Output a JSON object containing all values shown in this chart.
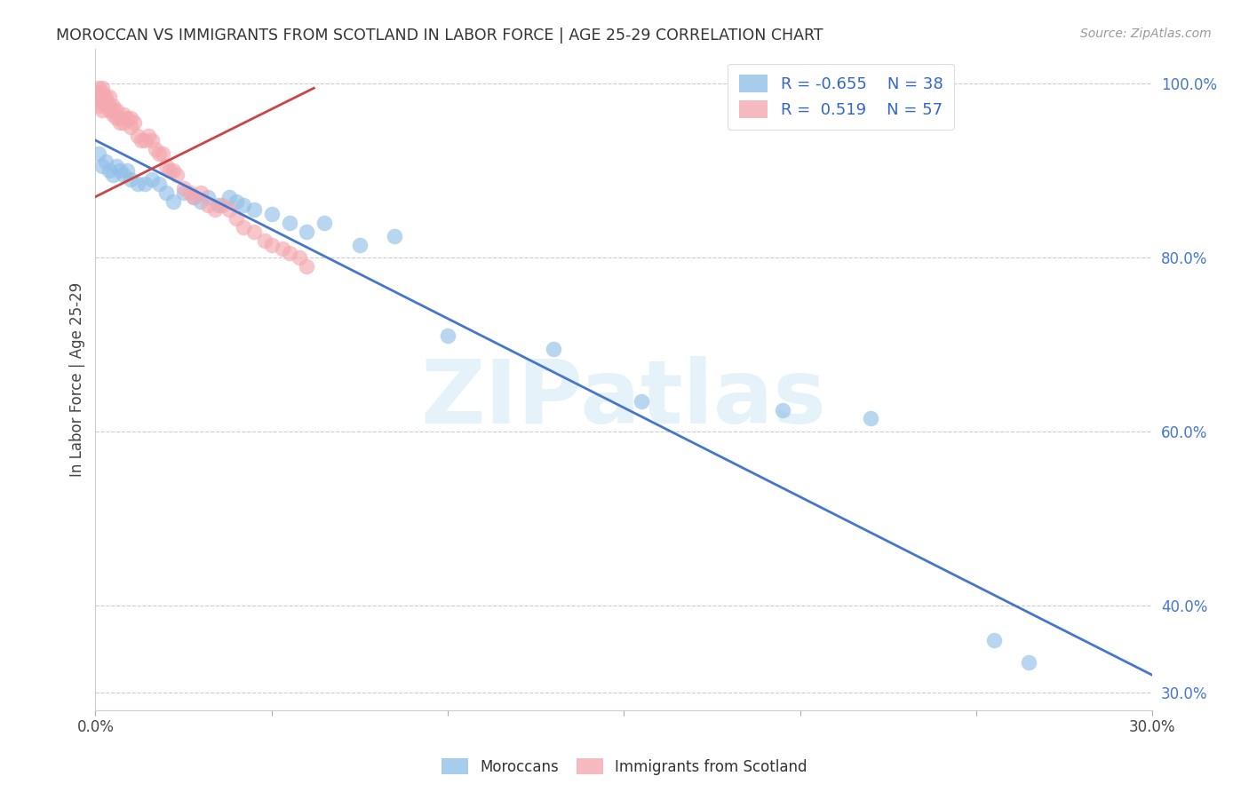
{
  "title": "MOROCCAN VS IMMIGRANTS FROM SCOTLAND IN LABOR FORCE | AGE 25-29 CORRELATION CHART",
  "source": "Source: ZipAtlas.com",
  "ylabel": "In Labor Force | Age 25-29",
  "xlim": [
    0.0,
    0.3
  ],
  "ylim": [
    0.28,
    1.04
  ],
  "yticks": [
    0.3,
    0.4,
    0.6,
    0.8,
    1.0
  ],
  "ytick_labels": [
    "30.0%",
    "40.0%",
    "60.0%",
    "80.0%",
    "100.0%"
  ],
  "xticks": [
    0.0,
    0.05,
    0.1,
    0.15,
    0.2,
    0.25,
    0.3
  ],
  "xtick_labels": [
    "0.0%",
    "",
    "",
    "",
    "",
    "",
    "30.0%"
  ],
  "legend_R_blue": "-0.655",
  "legend_N_blue": "38",
  "legend_R_pink": "0.519",
  "legend_N_pink": "57",
  "blue_color": "#92c0e8",
  "pink_color": "#f4a8b0",
  "blue_line_color": "#4477cc",
  "pink_line_color": "#cc4444",
  "watermark": "ZIPatlas",
  "blue_points_x": [
    0.001,
    0.002,
    0.003,
    0.004,
    0.005,
    0.006,
    0.007,
    0.008,
    0.009,
    0.01,
    0.012,
    0.014,
    0.016,
    0.018,
    0.02,
    0.022,
    0.025,
    0.028,
    0.03,
    0.032,
    0.035,
    0.038,
    0.04,
    0.042,
    0.045,
    0.05,
    0.055,
    0.06,
    0.065,
    0.075,
    0.085,
    0.1,
    0.13,
    0.155,
    0.195,
    0.22,
    0.255,
    0.265
  ],
  "blue_points_y": [
    0.92,
    0.905,
    0.91,
    0.9,
    0.895,
    0.905,
    0.9,
    0.895,
    0.9,
    0.89,
    0.885,
    0.885,
    0.89,
    0.885,
    0.875,
    0.865,
    0.875,
    0.87,
    0.865,
    0.87,
    0.86,
    0.87,
    0.865,
    0.86,
    0.855,
    0.85,
    0.84,
    0.83,
    0.84,
    0.815,
    0.825,
    0.71,
    0.695,
    0.635,
    0.625,
    0.615,
    0.36,
    0.335
  ],
  "pink_points_x": [
    0.001,
    0.001,
    0.001,
    0.001,
    0.001,
    0.002,
    0.002,
    0.002,
    0.002,
    0.003,
    0.003,
    0.003,
    0.004,
    0.004,
    0.004,
    0.005,
    0.005,
    0.005,
    0.006,
    0.006,
    0.007,
    0.007,
    0.008,
    0.008,
    0.009,
    0.01,
    0.01,
    0.011,
    0.012,
    0.013,
    0.014,
    0.015,
    0.016,
    0.017,
    0.018,
    0.019,
    0.02,
    0.021,
    0.022,
    0.023,
    0.025,
    0.027,
    0.028,
    0.03,
    0.032,
    0.034,
    0.036,
    0.038,
    0.04,
    0.042,
    0.045,
    0.048,
    0.05,
    0.053,
    0.055,
    0.058,
    0.06
  ],
  "pink_points_y": [
    0.985,
    0.99,
    0.995,
    0.98,
    0.975,
    0.99,
    0.985,
    0.995,
    0.97,
    0.985,
    0.98,
    0.975,
    0.985,
    0.975,
    0.97,
    0.975,
    0.97,
    0.965,
    0.97,
    0.96,
    0.96,
    0.955,
    0.955,
    0.965,
    0.96,
    0.95,
    0.96,
    0.955,
    0.94,
    0.935,
    0.935,
    0.94,
    0.935,
    0.925,
    0.92,
    0.92,
    0.905,
    0.9,
    0.9,
    0.895,
    0.88,
    0.875,
    0.87,
    0.875,
    0.86,
    0.855,
    0.86,
    0.855,
    0.845,
    0.835,
    0.83,
    0.82,
    0.815,
    0.81,
    0.805,
    0.8,
    0.79
  ],
  "blue_line_x": [
    0.0,
    0.3
  ],
  "blue_line_y": [
    0.935,
    0.32
  ],
  "pink_line_x": [
    0.0,
    0.062
  ],
  "pink_line_y": [
    0.87,
    0.995
  ]
}
